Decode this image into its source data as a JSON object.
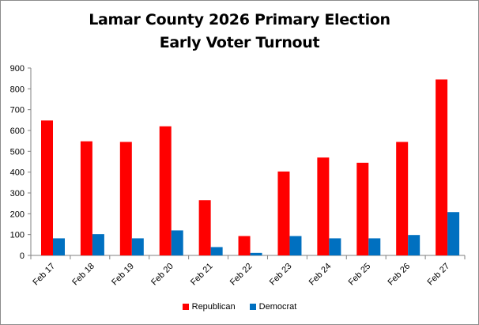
{
  "chart_data": {
    "type": "bar",
    "title_line1": "Lamar County 2026 Primary Election",
    "title_line2": "Early Voter Turnout",
    "categories": [
      "Feb 17",
      "Feb 18",
      "Feb 19",
      "Feb 20",
      "Feb 21",
      "Feb 22",
      "Feb 23",
      "Feb 24",
      "Feb 25",
      "Feb 26",
      "Feb 27"
    ],
    "series": [
      {
        "name": "Republican",
        "color": "#ff0000",
        "values": [
          648,
          548,
          545,
          620,
          265,
          93,
          403,
          470,
          445,
          545,
          845
        ]
      },
      {
        "name": "Democrat",
        "color": "#0070c0",
        "values": [
          82,
          102,
          82,
          120,
          40,
          12,
          93,
          82,
          82,
          98,
          208
        ]
      }
    ],
    "ylim": [
      0,
      900
    ],
    "yticks": [
      0,
      100,
      200,
      300,
      400,
      500,
      600,
      700,
      800,
      900
    ],
    "grid": false,
    "legend_position": "bottom"
  }
}
